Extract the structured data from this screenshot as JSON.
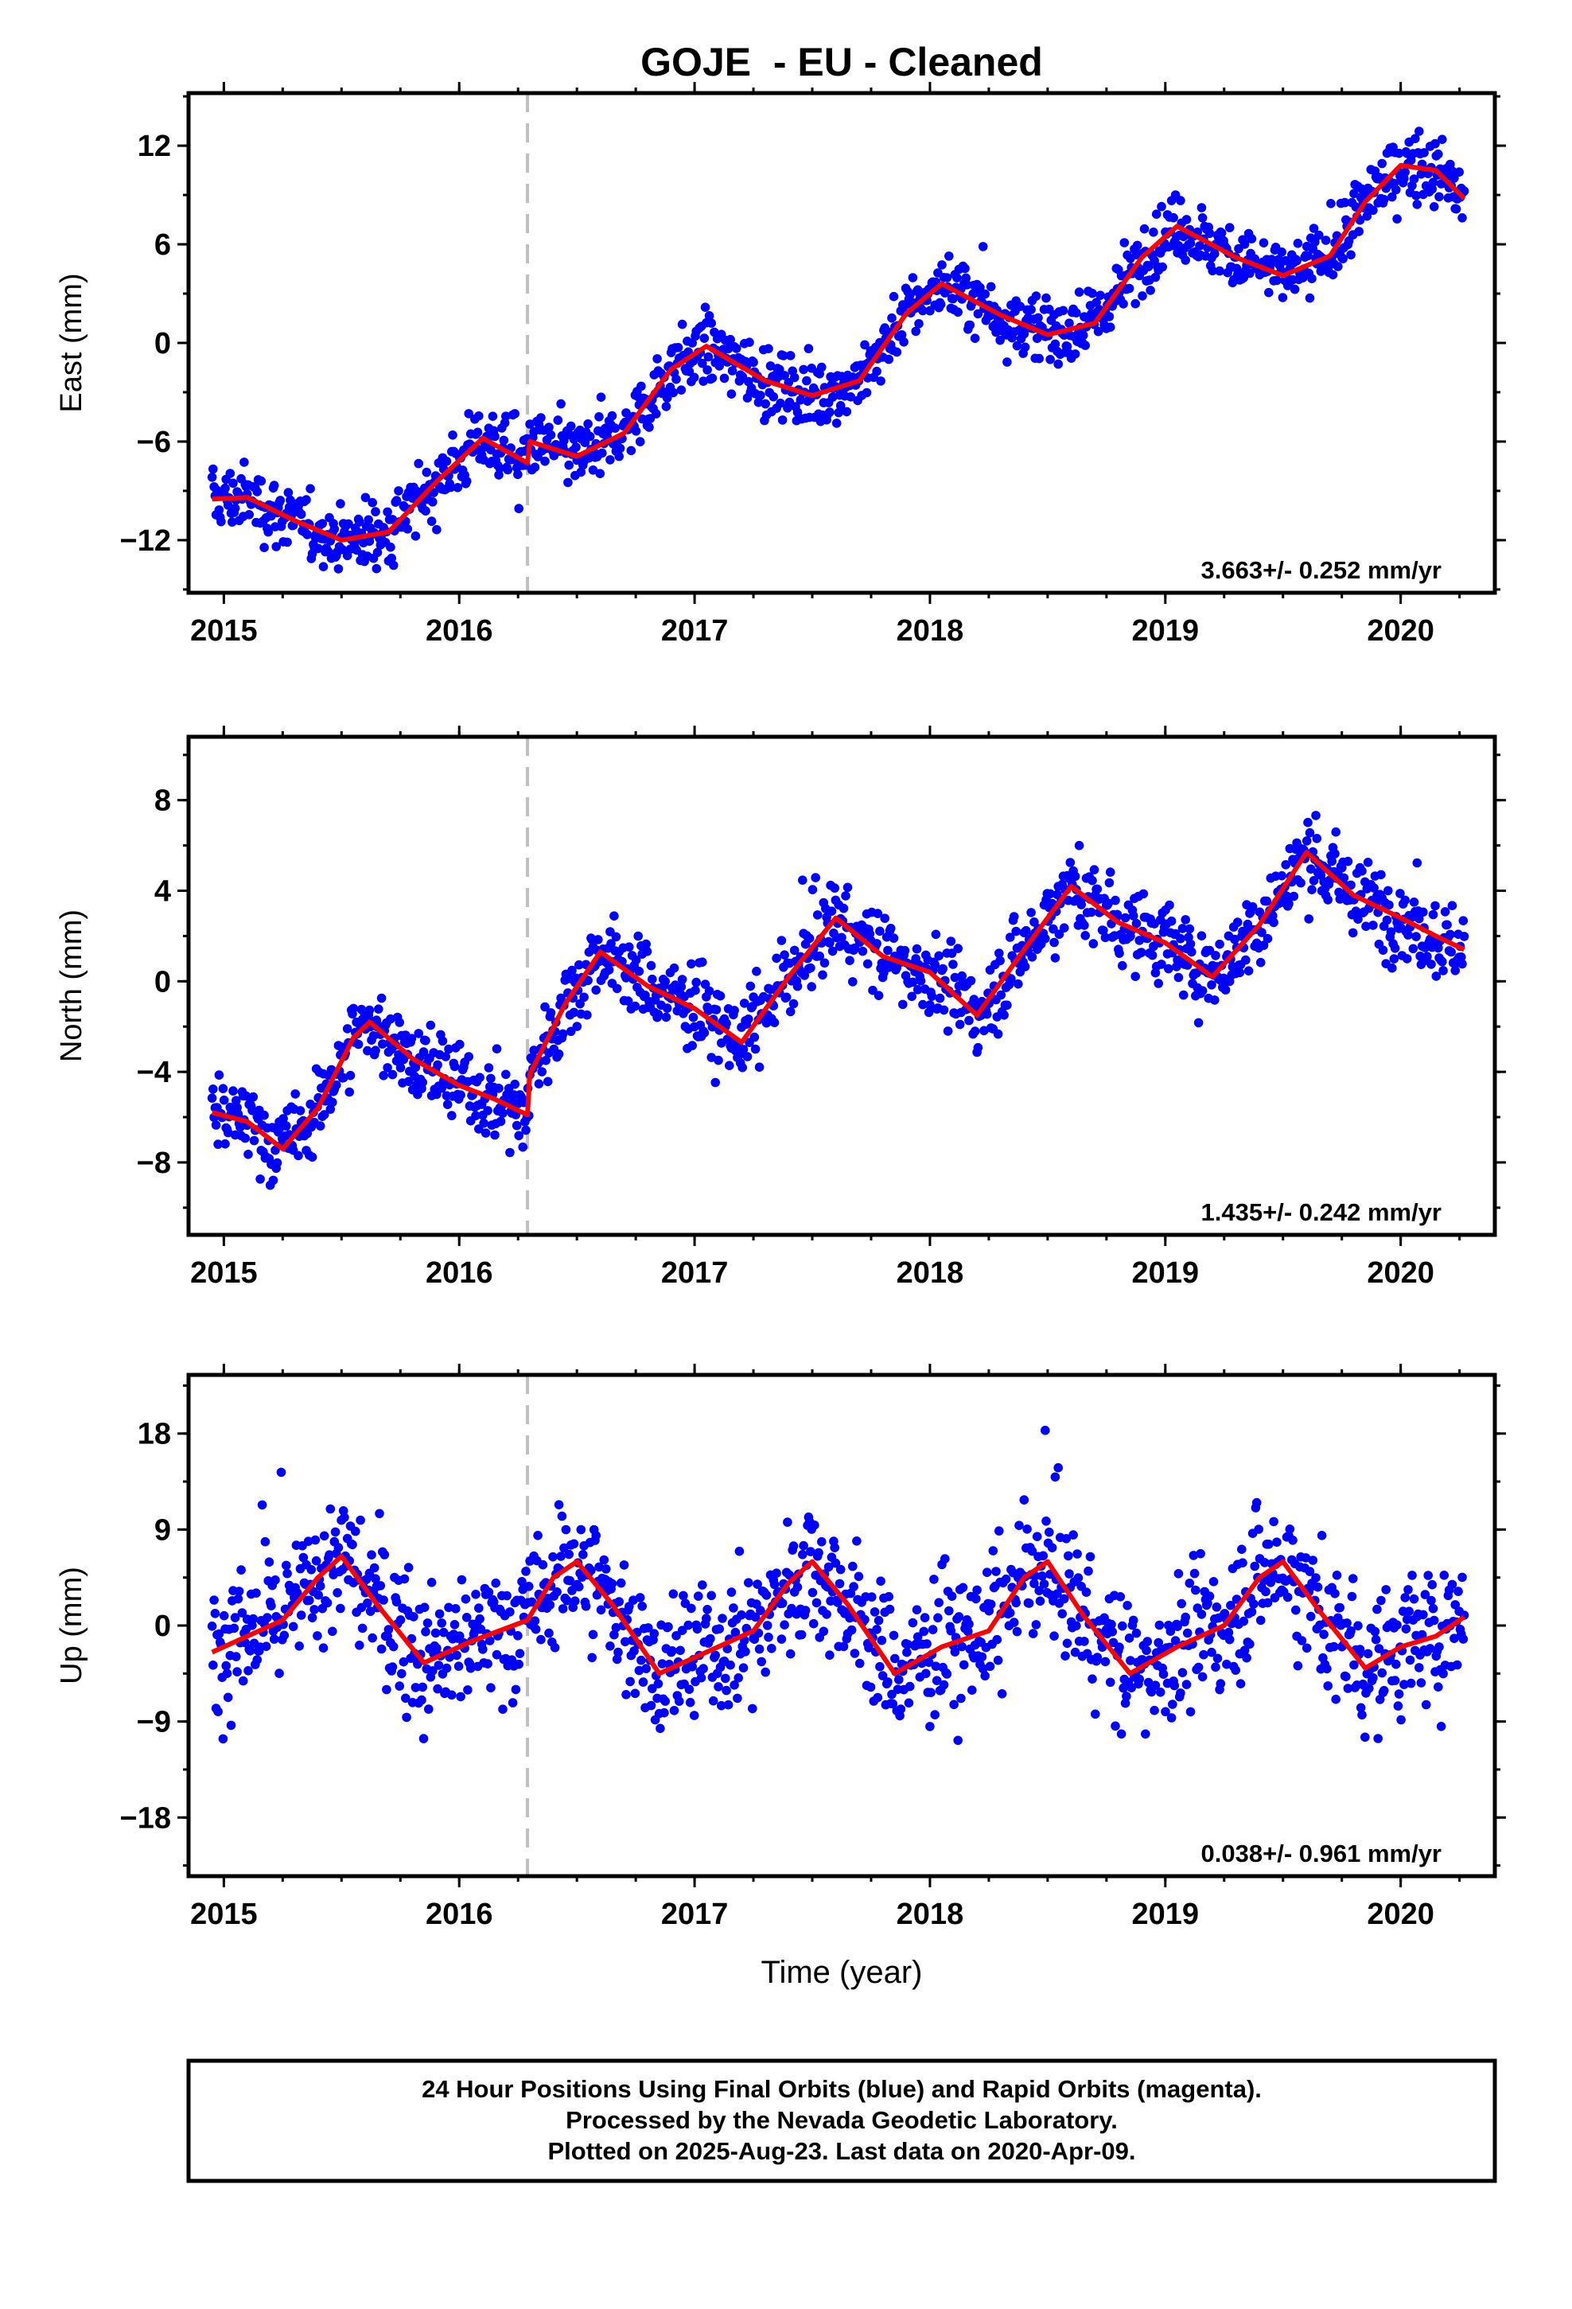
{
  "chart_data": {
    "type": "scatter",
    "title": "GOJE  - EU - Cleaned",
    "xlabel": "Time (year)",
    "xlim": [
      2014.85,
      2020.4
    ],
    "x_ticks": [
      "2015",
      "2016",
      "2017",
      "2018",
      "2019",
      "2020"
    ],
    "data_start": 2014.95,
    "data_end": 2020.27,
    "offset_epoch": 2016.29,
    "series_colors": {
      "final_orbits": "#0000ff",
      "fit": "#ff0000",
      "offset_marker": "#c0c0c0"
    },
    "panels": [
      {
        "ylabel": "East (mm)",
        "ylim": [
          -15.2,
          15.2
        ],
        "y_ticks": [
          "12",
          "6",
          "0",
          "-6",
          "-12"
        ],
        "rate_text": "3.663+/- 0.252 mm/yr",
        "fit_curve": [
          [
            2014.95,
            -9.5
          ],
          [
            2015.1,
            -9.4
          ],
          [
            2015.3,
            -10.8
          ],
          [
            2015.5,
            -12.0
          ],
          [
            2015.7,
            -11.5
          ],
          [
            2015.9,
            -8.5
          ],
          [
            2016.1,
            -5.8
          ],
          [
            2016.29,
            -7.3
          ],
          [
            2016.3,
            -6.0
          ],
          [
            2016.5,
            -6.9
          ],
          [
            2016.7,
            -5.5
          ],
          [
            2016.9,
            -1.6
          ],
          [
            2017.05,
            -0.2
          ],
          [
            2017.3,
            -2.3
          ],
          [
            2017.5,
            -3.2
          ],
          [
            2017.7,
            -2.3
          ],
          [
            2017.9,
            1.8
          ],
          [
            2018.05,
            3.6
          ],
          [
            2018.3,
            1.7
          ],
          [
            2018.5,
            0.5
          ],
          [
            2018.7,
            1.2
          ],
          [
            2018.9,
            5.2
          ],
          [
            2019.05,
            7.1
          ],
          [
            2019.3,
            5.2
          ],
          [
            2019.5,
            4.1
          ],
          [
            2019.7,
            5.3
          ],
          [
            2019.85,
            8.6
          ],
          [
            2020.0,
            10.8
          ],
          [
            2020.15,
            10.5
          ],
          [
            2020.27,
            8.8
          ]
        ]
      },
      {
        "ylabel": "North (mm)",
        "ylim": [
          -11.2,
          10.8
        ],
        "y_ticks": [
          "8",
          "4",
          "0",
          "-4",
          "-8"
        ],
        "rate_text": "1.435+/- 0.242 mm/yr",
        "fit_curve": [
          [
            2014.95,
            -5.8
          ],
          [
            2015.1,
            -6.2
          ],
          [
            2015.25,
            -7.4
          ],
          [
            2015.4,
            -5.6
          ],
          [
            2015.55,
            -2.5
          ],
          [
            2015.62,
            -1.8
          ],
          [
            2015.8,
            -3.4
          ],
          [
            2016.0,
            -4.6
          ],
          [
            2016.15,
            -5.2
          ],
          [
            2016.29,
            -5.9
          ],
          [
            2016.3,
            -4.1
          ],
          [
            2016.45,
            -1.0
          ],
          [
            2016.6,
            1.3
          ],
          [
            2016.8,
            -0.2
          ],
          [
            2017.0,
            -1.2
          ],
          [
            2017.2,
            -2.7
          ],
          [
            2017.4,
            0.2
          ],
          [
            2017.6,
            2.8
          ],
          [
            2017.8,
            1.1
          ],
          [
            2018.0,
            0.4
          ],
          [
            2018.2,
            -1.5
          ],
          [
            2018.4,
            1.4
          ],
          [
            2018.6,
            4.2
          ],
          [
            2018.8,
            2.6
          ],
          [
            2019.0,
            1.7
          ],
          [
            2019.2,
            0.2
          ],
          [
            2019.4,
            2.5
          ],
          [
            2019.6,
            5.7
          ],
          [
            2019.8,
            3.8
          ],
          [
            2020.0,
            2.8
          ],
          [
            2020.15,
            2.0
          ],
          [
            2020.27,
            1.4
          ]
        ]
      },
      {
        "ylabel": "Up (mm)",
        "ylim": [
          -23.5,
          23.5
        ],
        "y_ticks": [
          "18",
          "9",
          "0",
          "-9",
          "-18"
        ],
        "rate_text": "0.038+/- 0.961 mm/yr",
        "fit_curve": [
          [
            2014.95,
            -2.5
          ],
          [
            2015.1,
            -1.0
          ],
          [
            2015.25,
            0.5
          ],
          [
            2015.4,
            4.5
          ],
          [
            2015.5,
            6.5
          ],
          [
            2015.65,
            2.0
          ],
          [
            2015.85,
            -3.5
          ],
          [
            2016.05,
            -1.5
          ],
          [
            2016.29,
            0.5
          ],
          [
            2016.4,
            4.5
          ],
          [
            2016.5,
            6.0
          ],
          [
            2016.65,
            2.0
          ],
          [
            2016.85,
            -4.5
          ],
          [
            2017.05,
            -2.5
          ],
          [
            2017.25,
            -0.5
          ],
          [
            2017.4,
            4.0
          ],
          [
            2017.5,
            6.0
          ],
          [
            2017.65,
            2.0
          ],
          [
            2017.85,
            -4.5
          ],
          [
            2018.05,
            -2.0
          ],
          [
            2018.25,
            -0.5
          ],
          [
            2018.4,
            4.5
          ],
          [
            2018.5,
            6.0
          ],
          [
            2018.65,
            1.0
          ],
          [
            2018.85,
            -4.5
          ],
          [
            2019.05,
            -2.0
          ],
          [
            2019.25,
            0.0
          ],
          [
            2019.4,
            4.5
          ],
          [
            2019.5,
            6.0
          ],
          [
            2019.65,
            1.5
          ],
          [
            2019.85,
            -4.0
          ],
          [
            2020.0,
            -2.0
          ],
          [
            2020.15,
            -1.0
          ],
          [
            2020.27,
            0.8
          ]
        ]
      }
    ],
    "footer_lines": [
      "24 Hour Positions Using Final Orbits (blue) and Rapid Orbits (magenta).",
      "Processed by the Nevada Geodetic Laboratory.",
      "Plotted on 2025-Aug-23. Last data on 2020-Apr-09."
    ]
  }
}
